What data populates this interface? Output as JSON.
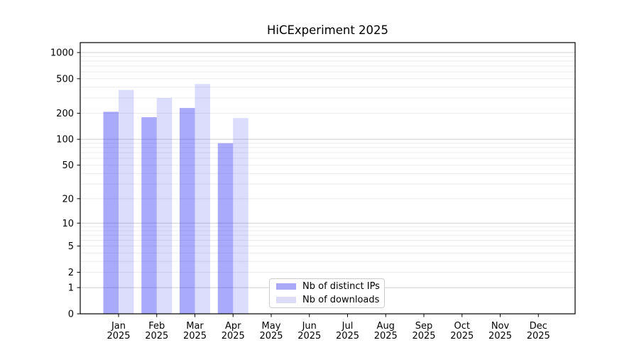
{
  "chart_data": {
    "type": "bar",
    "title": "HiCExperiment 2025",
    "year": "2025",
    "categories": [
      "Jan",
      "Feb",
      "Mar",
      "Apr",
      "May",
      "Jun",
      "Jul",
      "Aug",
      "Sep",
      "Oct",
      "Nov",
      "Dec"
    ],
    "series": [
      {
        "name": "Nb of distinct IPs",
        "swatch_color": "#a9a9f7",
        "base_color": "#2a2af2",
        "opacity": 0.4,
        "values": [
          208,
          180,
          230,
          90,
          null,
          null,
          null,
          null,
          null,
          null,
          null,
          null
        ]
      },
      {
        "name": "Nb of downloads",
        "swatch_color": "#dcdcf9",
        "base_color": "#2a2af2",
        "opacity": 0.165,
        "values": [
          372,
          300,
          435,
          176,
          null,
          null,
          null,
          null,
          null,
          null,
          null,
          null
        ]
      }
    ],
    "y_axis": {
      "scale": "log1p",
      "ticks": [
        0,
        1,
        2,
        5,
        10,
        20,
        50,
        100,
        200,
        500,
        1000
      ],
      "min": 0,
      "max": 1000
    },
    "x_axis": {
      "tick_labels_two_lines": true
    },
    "grid": {
      "minor_color": "#ececec",
      "major_color": "#cfcfcf",
      "major_values": [
        1,
        10,
        100,
        1000
      ]
    },
    "frame_color": "#000000",
    "legend_position": "lower center"
  }
}
